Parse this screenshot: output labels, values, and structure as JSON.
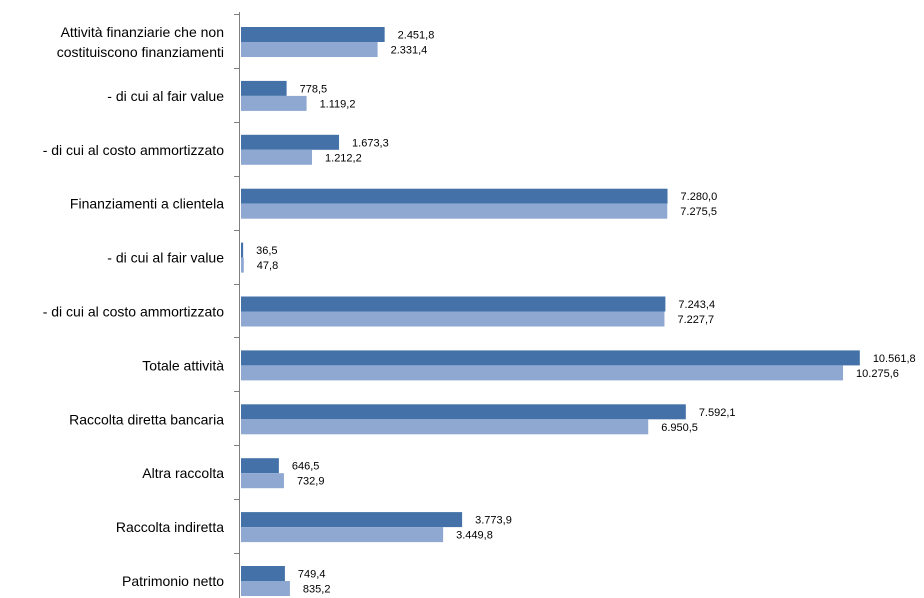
{
  "chart_data": {
    "type": "bar",
    "orientation": "horizontal",
    "categories": [
      [
        "Attività finanziarie che non",
        "costituiscono finanziamenti"
      ],
      [
        "- di cui al fair value"
      ],
      [
        "- di cui al costo ammortizzato"
      ],
      [
        "Finanziamenti a clientela"
      ],
      [
        "- di cui al fair value"
      ],
      [
        "- di cui al costo ammortizzato"
      ],
      [
        "Totale attività"
      ],
      [
        "Raccolta diretta bancaria"
      ],
      [
        "Altra raccolta"
      ],
      [
        "Raccolta indiretta"
      ],
      [
        "Patrimonio netto"
      ]
    ],
    "series": [
      {
        "values": [
          2451.8,
          778.5,
          1673.3,
          7280.0,
          36.5,
          7243.4,
          10561.8,
          7592.1,
          646.5,
          3773.9,
          749.4
        ],
        "labels": [
          "2.451,8",
          "778,5",
          "1.673,3",
          "7.280,0",
          "36,5",
          "7.243,4",
          "10.561,8",
          "7.592,1",
          "646,5",
          "3.773,9",
          "749,4"
        ],
        "color": "#4472A8"
      },
      {
        "values": [
          2331.4,
          1119.2,
          1212.2,
          7275.5,
          47.8,
          7227.7,
          10275.6,
          6950.5,
          732.9,
          3449.8,
          835.2
        ],
        "labels": [
          "2.331,4",
          "1.119,2",
          "1.212,2",
          "7.275,5",
          "47,8",
          "7.227,7",
          "10.275,6",
          "6.950,5",
          "732,9",
          "3.449,8",
          "835,2"
        ],
        "color": "#8EA8D2"
      }
    ],
    "xlim": [
      0,
      11000
    ],
    "grid": false,
    "legend": "none"
  }
}
